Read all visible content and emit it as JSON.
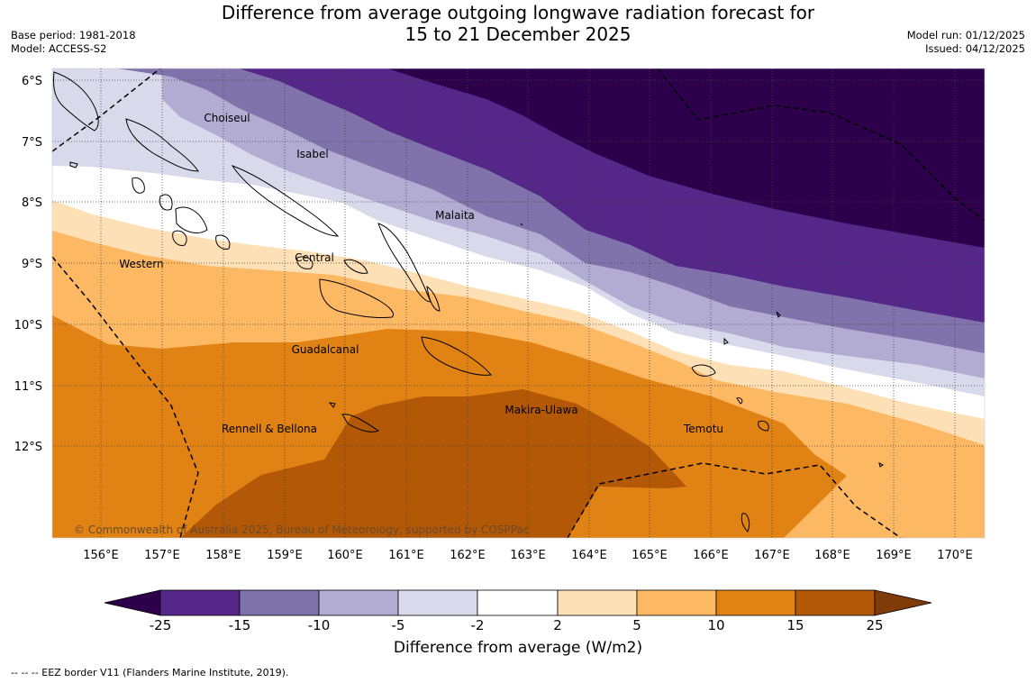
{
  "title": {
    "line1": "Difference from average outgoing longwave radiation forecast for",
    "line2": "15 to 21 December 2025"
  },
  "meta_left": {
    "base_period": "Base period: 1981-2018",
    "model": "Model: ACCESS-S2"
  },
  "meta_right": {
    "model_run": "Model run: 01/12/2025",
    "issued": "Issued: 04/12/2025"
  },
  "map": {
    "lat_labels": [
      "6°S",
      "7°S",
      "8°S",
      "9°S",
      "10°S",
      "11°S",
      "12°S"
    ],
    "lon_labels": [
      "156°E",
      "157°E",
      "158°E",
      "159°E",
      "160°E",
      "161°E",
      "162°E",
      "163°E",
      "164°E",
      "165°E",
      "166°E",
      "167°E",
      "168°E",
      "169°E",
      "170°E"
    ],
    "place_labels": [
      "Choiseul",
      "Isabel",
      "Malaita",
      "Central",
      "Western",
      "Guadalcanal",
      "Makira-Ulawa",
      "Rennell & Bellona",
      "Temotu"
    ],
    "copyright": "© Commonwealth of Australia 2025, Bureau of Meteorology, supported by COSPPac"
  },
  "colorbar": {
    "ticks": [
      "-25",
      "-15",
      "-10",
      "-5",
      "-2",
      "2",
      "5",
      "10",
      "15",
      "25"
    ],
    "colors": {
      "lt_-25": "#2d004b",
      "-25_-15": "#542788",
      "-15_-10": "#8073ac",
      "-10_-5": "#b2abd2",
      "-5_-2": "#d8daeb",
      "-2_2": "#ffffff",
      "2_5": "#fee0b6",
      "5_10": "#fdb863",
      "10_15": "#e08214",
      "15_25": "#b35806",
      "gt_25": "#7f3b08"
    },
    "label": "Difference from average (W/m2)"
  },
  "footnote": "--  --  -- EEZ border V11 (Flanders Marine Institute, 2019)."
}
